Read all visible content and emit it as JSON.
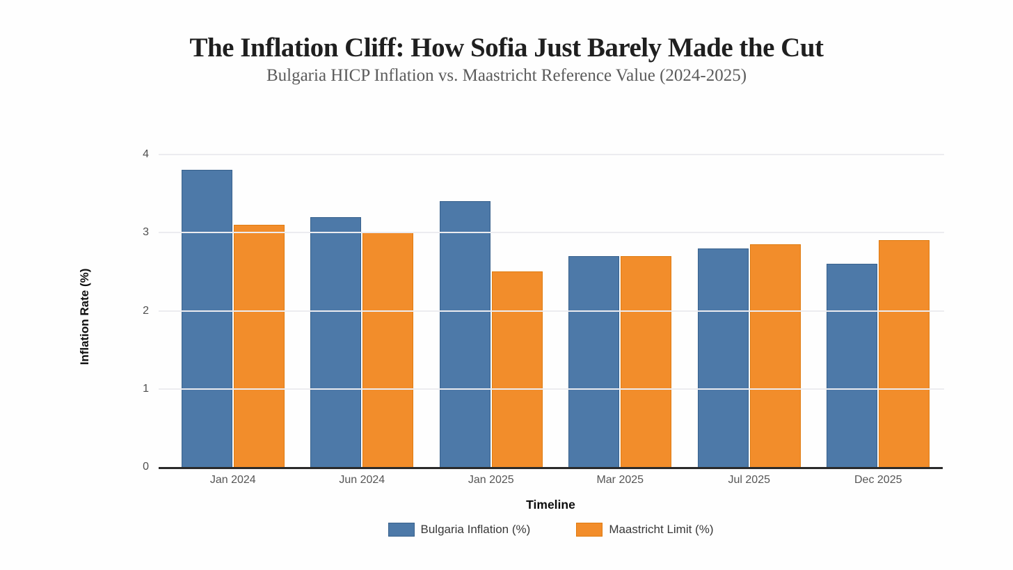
{
  "chart_data": {
    "type": "bar",
    "title": "The Inflation Cliff: How Sofia Just Barely Made the Cut",
    "subtitle": "Bulgaria HICP Inflation vs. Maastricht Reference Value (2024-2025)",
    "xlabel": "Timeline",
    "ylabel": "Inflation Rate (%)",
    "categories": [
      "Jan 2024",
      "Jun 2024",
      "Jan 2025",
      "Mar 2025",
      "Jul 2025",
      "Dec 2025"
    ],
    "series": [
      {
        "name": "Bulgaria Inflation (%)",
        "color": "#4D79A8",
        "border_color": "#38618C",
        "values": [
          3.8,
          3.2,
          3.4,
          2.7,
          2.8,
          2.6
        ]
      },
      {
        "name": "Maastricht Limit (%)",
        "color": "#F28D2B",
        "border_color": "#DF7B10",
        "values": [
          3.1,
          3.0,
          2.5,
          2.7,
          2.85,
          2.9
        ]
      }
    ],
    "ylim": [
      0,
      4
    ],
    "yticks": [
      0,
      1,
      2,
      3,
      4
    ],
    "grid": true,
    "legend_position": "bottom",
    "colors": {
      "background": "#fefefe",
      "gridline": "#ececf0",
      "axis_line": "#2a2a2a",
      "tick_label": "#4f4f4f",
      "title": "#1f1f1f",
      "subtitle": "#5b5b5b"
    }
  }
}
